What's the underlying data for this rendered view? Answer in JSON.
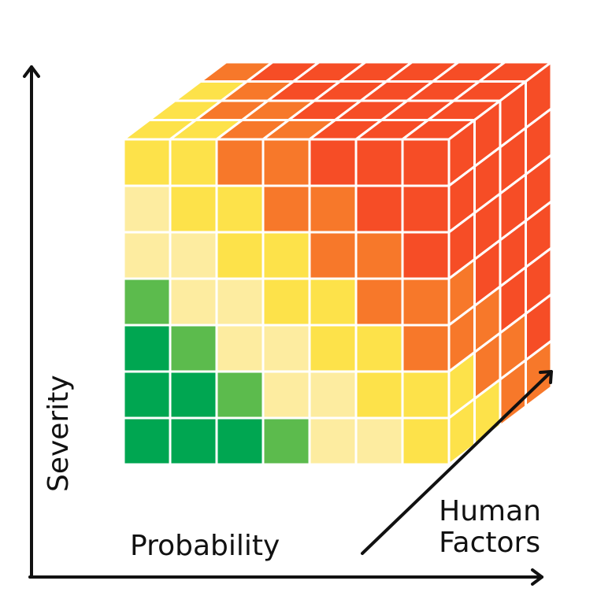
{
  "axes": {
    "x_label": "Probability",
    "y_label": "Severity",
    "z_label_line1": "Human",
    "z_label_line2": "Factors",
    "axis_color": "#111111"
  },
  "palette": {
    "dark_green": "#00a651",
    "green": "#5cbb4d",
    "pale_yellow": "#fdeca0",
    "yellow": "#fde24a",
    "orange": "#f7782a",
    "red": "#f64d26"
  },
  "cube": {
    "front_face_levels_top_to_bottom": [
      [
        "yellow",
        "yellow",
        "orange",
        "orange",
        "red",
        "red",
        "red"
      ],
      [
        "pale_yellow",
        "yellow",
        "yellow",
        "orange",
        "orange",
        "red",
        "red"
      ],
      [
        "pale_yellow",
        "pale_yellow",
        "yellow",
        "yellow",
        "orange",
        "orange",
        "red"
      ],
      [
        "green",
        "pale_yellow",
        "pale_yellow",
        "yellow",
        "yellow",
        "orange",
        "orange"
      ],
      [
        "dark_green",
        "green",
        "pale_yellow",
        "pale_yellow",
        "yellow",
        "yellow",
        "orange"
      ],
      [
        "dark_green",
        "dark_green",
        "green",
        "pale_yellow",
        "pale_yellow",
        "yellow",
        "yellow"
      ],
      [
        "dark_green",
        "dark_green",
        "dark_green",
        "green",
        "pale_yellow",
        "pale_yellow",
        "yellow"
      ]
    ],
    "top_face_levels_back_to_front": [
      [
        "orange",
        "red",
        "red",
        "red",
        "red",
        "red",
        "red"
      ],
      [
        "yellow",
        "orange",
        "red",
        "red",
        "red",
        "red",
        "red"
      ],
      [
        "yellow",
        "orange",
        "orange",
        "red",
        "red",
        "red",
        "red"
      ],
      [
        "yellow",
        "yellow",
        "orange",
        "orange",
        "red",
        "red",
        "red"
      ]
    ],
    "right_face_levels_top_to_bottom": [
      [
        "red",
        "red",
        "red",
        "red"
      ],
      [
        "red",
        "red",
        "red",
        "red"
      ],
      [
        "red",
        "red",
        "red",
        "red"
      ],
      [
        "orange",
        "red",
        "red",
        "red"
      ],
      [
        "orange",
        "orange",
        "red",
        "red"
      ],
      [
        "yellow",
        "orange",
        "orange",
        "red"
      ],
      [
        "yellow",
        "yellow",
        "orange",
        "orange"
      ]
    ]
  }
}
